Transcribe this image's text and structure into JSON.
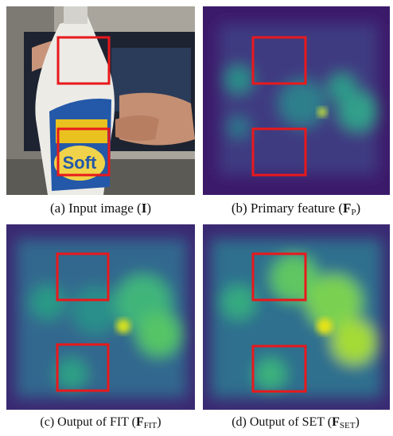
{
  "panels": [
    {
      "text": "(a) Input image (",
      "symbol": "I",
      "close": ")"
    },
    {
      "text": "(b) Primary feature (",
      "symbol": "F",
      "sub": "P",
      "close": ")"
    },
    {
      "text": "(c) Output of FIT (",
      "symbol": "F",
      "sub": "FIT",
      "close": ")"
    },
    {
      "text": "(d) Output of SET (",
      "symbol": "F",
      "sub": "SET",
      "close": ")"
    }
  ]
}
